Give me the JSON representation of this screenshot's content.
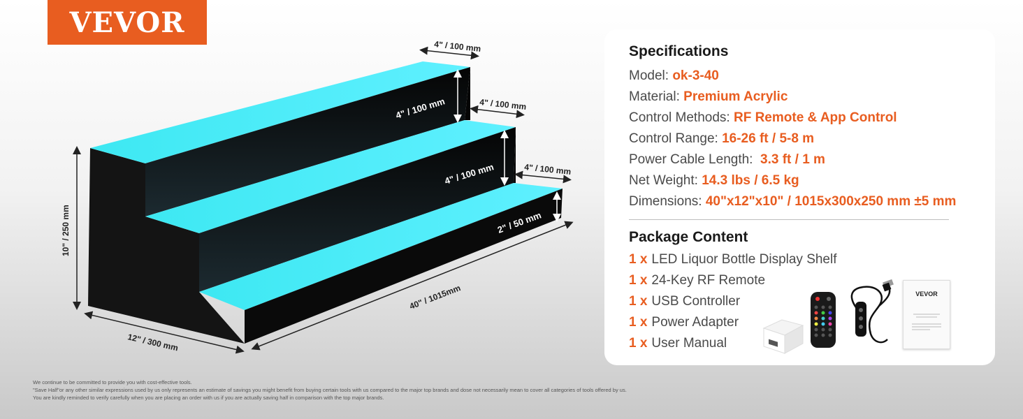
{
  "brand": {
    "logo_text": "VEVOR",
    "color": "#e85d20"
  },
  "dimensions": {
    "top_depth": "4\" / 100 mm",
    "top_riser": "4\" / 100 mm",
    "middle_depth": "4\" / 100 mm",
    "middle_riser": "4\" / 100 mm",
    "bottom_depth": "4\" / 100 mm",
    "bottom_riser": "2\" / 50 mm",
    "height": "10\" / 250 mm",
    "depth": "12\" / 300 mm",
    "length": "40\" / 1015mm"
  },
  "specifications": {
    "heading": "Specifications",
    "rows": [
      {
        "label": "Model: ",
        "value": "ok-3-40"
      },
      {
        "label": "Material: ",
        "value": "Premium Acrylic"
      },
      {
        "label": "Control Methods: ",
        "value": "RF Remote & App Control"
      },
      {
        "label": "Control Range: ",
        "value": "16-26 ft / 5-8 m"
      },
      {
        "label": "Power Cable Length:  ",
        "value": "3.3 ft / 1 m"
      },
      {
        "label": "Net Weight: ",
        "value": "14.3 lbs / 6.5 kg"
      },
      {
        "label": "Dimensions: ",
        "value": "40\"x12\"x10\" / 1015x300x250 mm ±5 mm"
      }
    ]
  },
  "package": {
    "heading": "Package Content",
    "items": [
      {
        "qty": "1 x",
        "name": "LED Liquor Bottle Display Shelf"
      },
      {
        "qty": "1 x",
        "name": "24-Key RF Remote"
      },
      {
        "qty": "1 x",
        "name": "USB Controller"
      },
      {
        "qty": "1 x",
        "name": "Power Adapter"
      },
      {
        "qty": "1 x",
        "name": "User Manual"
      }
    ],
    "manual_brand": "VEVOR"
  },
  "disclaimer": {
    "line1": "We continue to be committed to provide you with cost-effective tools.",
    "line2": "\"Save Half\"or any other similar expressions used by us only represents an estimate of savings you might benefit from buying certain tools with us compared to the major top brands and dose not necessarily mean to cover all categories of tools offered by us.",
    "line3": "You are kindly reminded to verify carefully when you are placing an order with us if you are actually saving half in comparison with the top major brands."
  },
  "colors": {
    "led": "#4fe6ff",
    "acrylic": "#0e0e0e",
    "accent": "#e85d20"
  },
  "icons": [
    "power-adapter-icon",
    "remote-control-icon",
    "usb-controller-icon",
    "user-manual-icon"
  ]
}
